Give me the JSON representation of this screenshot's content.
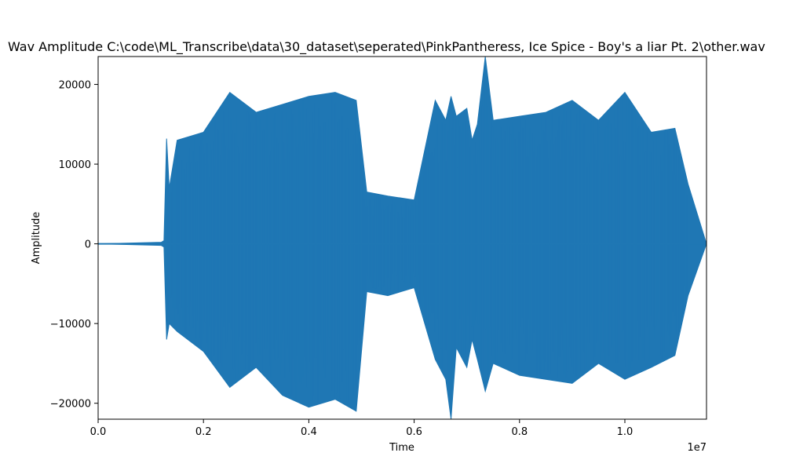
{
  "chart_data": {
    "type": "line",
    "title": "Wav Amplitude C:\\code\\ML_Transcribe\\data\\30_dataset\\seperated\\PinkPantheress, Ice Spice - Boy's a liar Pt. 2\\other.wav",
    "xlabel": "Time",
    "ylabel": "Amplitude",
    "x_offset_label": "1e7",
    "xlim": [
      0,
      11550000
    ],
    "ylim": [
      -22000,
      23500
    ],
    "x_ticks": [
      0,
      2000000,
      4000000,
      6000000,
      8000000,
      10000000
    ],
    "x_tick_labels": [
      "0.0",
      "0.2",
      "0.4",
      "0.6",
      "0.8",
      "1.0"
    ],
    "y_ticks": [
      -20000,
      -10000,
      0,
      10000,
      20000
    ],
    "y_tick_labels": [
      "−20000",
      "−10000",
      "0",
      "10000",
      "20000"
    ],
    "grid": false,
    "legend": "none",
    "series": [
      {
        "color": "#1f77b4",
        "envelope": {
          "x": [
            0,
            1200000,
            1250000,
            1300000,
            1350000,
            1500000,
            2000000,
            2500000,
            3000000,
            3500000,
            4000000,
            4500000,
            4900000,
            5100000,
            5500000,
            6000000,
            6400000,
            6600000,
            6700000,
            6800000,
            7000000,
            7100000,
            7200000,
            7350000,
            7500000,
            8000000,
            8500000,
            9000000,
            9500000,
            10000000,
            10500000,
            10950000,
            11200000,
            11550000
          ],
          "max": [
            0,
            200,
            400,
            13200,
            7000,
            13000,
            14000,
            19000,
            16500,
            17500,
            18500,
            19000,
            18000,
            6500,
            6000,
            5500,
            18000,
            15500,
            18500,
            16000,
            17000,
            13000,
            15000,
            23500,
            15500,
            16000,
            16500,
            18000,
            15500,
            19000,
            14000,
            14500,
            7500,
            0
          ],
          "min": [
            0,
            -200,
            -400,
            -12000,
            -10000,
            -11000,
            -13500,
            -18000,
            -15500,
            -19000,
            -20500,
            -19500,
            -21000,
            -6000,
            -6500,
            -5500,
            -14500,
            -17000,
            -22000,
            -13000,
            -15500,
            -12000,
            -14500,
            -18500,
            -15000,
            -16500,
            -17000,
            -17500,
            -15000,
            -17000,
            -15500,
            -14000,
            -6500,
            0
          ]
        }
      }
    ]
  }
}
